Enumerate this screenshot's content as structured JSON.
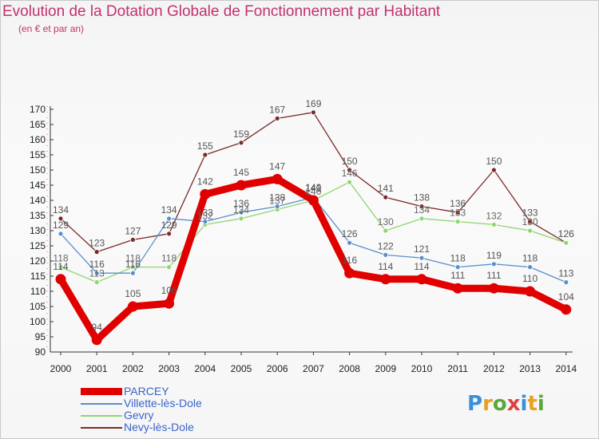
{
  "title": "Evolution de la Dotation Globale de Fonctionnement par Habitant",
  "subtitle": "(en € et par an)",
  "brand": {
    "name": "Proxiti",
    "colors": [
      "#3a8fd8",
      "#e8a020",
      "#5aa83c",
      "#e04040",
      "#3a8fd8",
      "#e8a020",
      "#5aa83c"
    ]
  },
  "chart_data": {
    "type": "line",
    "title": "Evolution de la Dotation Globale de Fonctionnement par Habitant",
    "subtitle": "(en € et par an)",
    "x": [
      "2000",
      "2001",
      "2002",
      "2003",
      "2004",
      "2005",
      "2006",
      "2007",
      "2008",
      "2009",
      "2010",
      "2011",
      "2012",
      "2013",
      "2014"
    ],
    "ylim": [
      90,
      170
    ],
    "yticks": [
      90,
      95,
      100,
      105,
      110,
      115,
      120,
      125,
      130,
      135,
      140,
      145,
      150,
      155,
      160,
      165,
      170
    ],
    "grid": false,
    "legend_position": "bottom-left",
    "series": [
      {
        "name": "PARCEY",
        "color": "#e00000",
        "values": [
          114,
          94,
          105,
          106,
          142,
          145,
          147,
          140,
          116,
          114,
          114,
          111,
          111,
          110,
          104
        ]
      },
      {
        "name": "Villette-lès-Dole",
        "color": "#5a8fcc",
        "values": [
          129,
          116,
          116,
          134,
          133,
          136,
          138,
          141,
          126,
          122,
          121,
          118,
          119,
          118,
          113
        ]
      },
      {
        "name": "Gevry",
        "color": "#8fd66e",
        "values": [
          118,
          113,
          118,
          118,
          132,
          134,
          137,
          140,
          146,
          130,
          134,
          133,
          132,
          130,
          126
        ]
      },
      {
        "name": "Nevy-lès-Dole",
        "color": "#7a2a2a",
        "values": [
          134,
          123,
          127,
          129,
          155,
          159,
          167,
          169,
          150,
          141,
          138,
          136,
          150,
          133,
          126
        ]
      }
    ]
  }
}
